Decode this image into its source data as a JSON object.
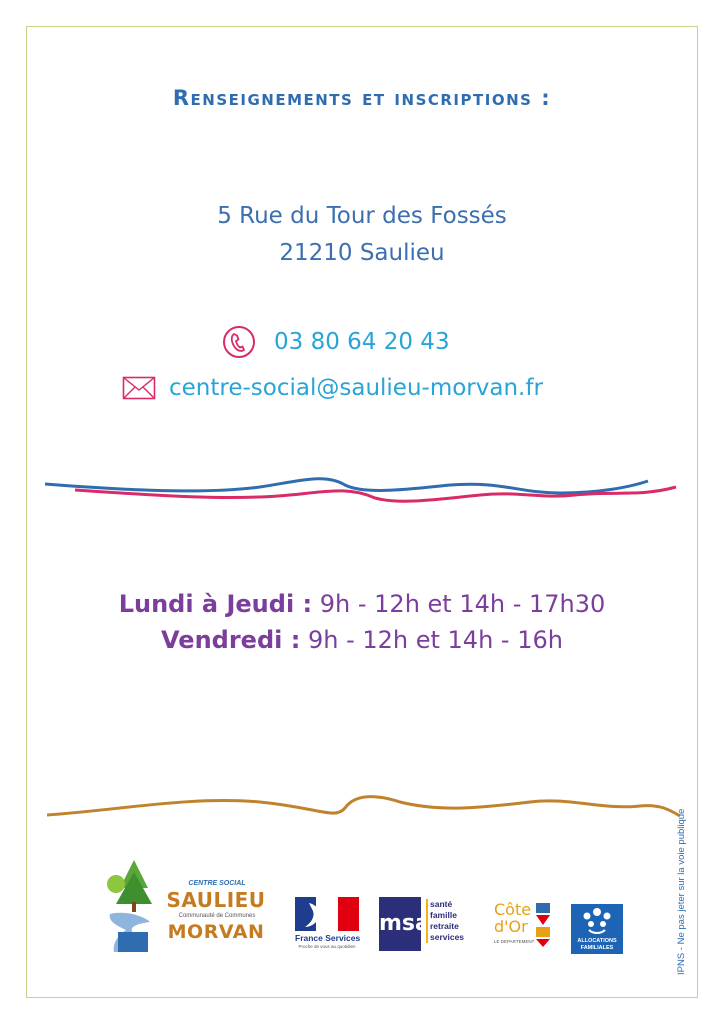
{
  "title": "Renseignements et inscriptions :",
  "address": {
    "line1": "5 Rue du Tour des Fossés",
    "line2": "21210 Saulieu"
  },
  "contact": {
    "phone": "03 80 64 20 43",
    "email": "centre-social@saulieu-morvan.fr"
  },
  "hours": [
    {
      "days": "Lundi à Jeudi :",
      "times": "9h - 12h et 14h - 17h30"
    },
    {
      "days": "Vendredi :",
      "times": "9h - 12h et 14h - 16h"
    }
  ],
  "side_note": "IPNS - Ne pas jeter sur la voie publique",
  "logos": {
    "saulieu": {
      "top": "CENTRE SOCIAL",
      "name1": "SAULIEU",
      "sub": "Communauté de Communes",
      "name2": "MORVAN"
    },
    "france_services": {
      "name": "France Services",
      "tagline": "Proche de vous au quotidien"
    },
    "msa": {
      "letters": "msa",
      "items": [
        "santé",
        "famille",
        "retraite",
        "services"
      ]
    },
    "cote_dor": {
      "line1": "Côte",
      "line2": "d'Or",
      "sub": "LE DÉPARTEMENT"
    },
    "caf": {
      "line1": "ALLOCATIONS",
      "line2": "FAMILIALES"
    }
  },
  "colors": {
    "blue": "#2f6db0",
    "cyan": "#29a4d6",
    "pink": "#d92b6a",
    "purple": "#7b3e9c",
    "ochre": "#c0822c"
  }
}
